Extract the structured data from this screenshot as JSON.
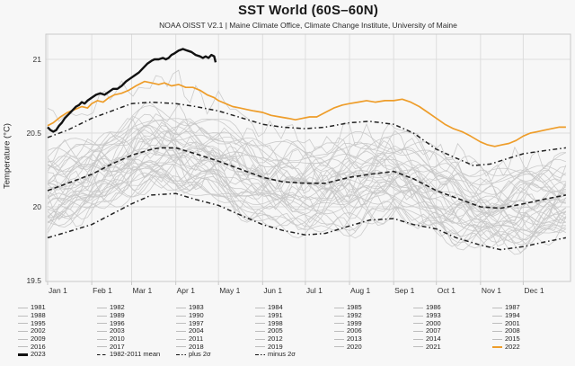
{
  "header": {
    "title": "SST World (60S–60N)",
    "subtitle": "NOAA OISST V2.1 | Maine Climate Office, Climate Change Institute, University of Maine"
  },
  "axes": {
    "y_label": "Temperature (°C)",
    "y_ticks": [
      {
        "value": 21,
        "label": "21"
      },
      {
        "value": 20.5,
        "label": "20.5"
      },
      {
        "value": 20,
        "label": "20"
      },
      {
        "value": 19.5,
        "label": "19.5"
      }
    ],
    "x_ticks": [
      {
        "day": 1,
        "label": "Jan 1"
      },
      {
        "day": 32,
        "label": "Feb 1"
      },
      {
        "day": 60,
        "label": "Mar 1"
      },
      {
        "day": 91,
        "label": "Apr 1"
      },
      {
        "day": 121,
        "label": "May 1"
      },
      {
        "day": 152,
        "label": "Jun 1"
      },
      {
        "day": 182,
        "label": "Jul 1"
      },
      {
        "day": 213,
        "label": "Aug 1"
      },
      {
        "day": 244,
        "label": "Sep 1"
      },
      {
        "day": 274,
        "label": "Oct 1"
      },
      {
        "day": 305,
        "label": "Nov 1"
      },
      {
        "day": 335,
        "label": "Dec 1"
      }
    ]
  },
  "colors": {
    "background": "#f7f7f7",
    "plot_border": "#c9c9c9",
    "gridline": "#dedede",
    "gray_year": "#c7c7c7",
    "orange_2022": "#EE9D2A",
    "black_2023": "#111111",
    "dashed_stat": "#222222"
  },
  "legend": {
    "columns": [
      {
        "items": [
          {
            "label": "1981",
            "style": "gray"
          },
          {
            "label": "1988",
            "style": "gray"
          },
          {
            "label": "1995",
            "style": "gray"
          },
          {
            "label": "2002",
            "style": "gray"
          },
          {
            "label": "2009",
            "style": "gray"
          },
          {
            "label": "2016",
            "style": "gray"
          },
          {
            "label": "2023",
            "style": "bold-black"
          }
        ]
      },
      {
        "items": [
          {
            "label": "1982",
            "style": "gray"
          },
          {
            "label": "1989",
            "style": "gray"
          },
          {
            "label": "1996",
            "style": "gray"
          },
          {
            "label": "2003",
            "style": "gray"
          },
          {
            "label": "2010",
            "style": "gray"
          },
          {
            "label": "2017",
            "style": "gray"
          },
          {
            "label": "1982-2011 mean",
            "style": "dashed"
          }
        ]
      },
      {
        "items": [
          {
            "label": "1983",
            "style": "gray"
          },
          {
            "label": "1990",
            "style": "gray"
          },
          {
            "label": "1997",
            "style": "gray"
          },
          {
            "label": "2004",
            "style": "gray"
          },
          {
            "label": "2011",
            "style": "gray"
          },
          {
            "label": "2018",
            "style": "gray"
          },
          {
            "label": "plus 2σ",
            "style": "dashdot"
          }
        ]
      },
      {
        "items": [
          {
            "label": "1984",
            "style": "gray"
          },
          {
            "label": "1991",
            "style": "gray"
          },
          {
            "label": "1998",
            "style": "gray"
          },
          {
            "label": "2005",
            "style": "gray"
          },
          {
            "label": "2012",
            "style": "gray"
          },
          {
            "label": "2019",
            "style": "gray"
          },
          {
            "label": "minus 2σ",
            "style": "dashdot"
          }
        ]
      },
      {
        "items": [
          {
            "label": "1985",
            "style": "gray"
          },
          {
            "label": "1992",
            "style": "gray"
          },
          {
            "label": "1999",
            "style": "gray"
          },
          {
            "label": "2006",
            "style": "gray"
          },
          {
            "label": "2013",
            "style": "gray"
          },
          {
            "label": "2020",
            "style": "gray"
          }
        ]
      },
      {
        "items": [
          {
            "label": "1986",
            "style": "gray"
          },
          {
            "label": "1993",
            "style": "gray"
          },
          {
            "label": "2000",
            "style": "gray"
          },
          {
            "label": "2007",
            "style": "gray"
          },
          {
            "label": "2014",
            "style": "gray"
          },
          {
            "label": "2021",
            "style": "gray"
          }
        ]
      },
      {
        "items": [
          {
            "label": "1987",
            "style": "gray"
          },
          {
            "label": "1994",
            "style": "gray"
          },
          {
            "label": "2001",
            "style": "gray"
          },
          {
            "label": "2008",
            "style": "gray"
          },
          {
            "label": "2015",
            "style": "gray"
          },
          {
            "label": "2022",
            "style": "orange"
          }
        ]
      }
    ]
  },
  "chart_data": {
    "type": "line",
    "title": "SST World (60S–60N)",
    "xlabel": "",
    "ylabel": "Temperature (°C)",
    "x_unit": "day_of_year",
    "xlim": [
      1,
      365
    ],
    "ylim": [
      19.49,
      21.17
    ],
    "grid": true,
    "legend_position": "bottom",
    "background_years": [
      1981,
      1982,
      1983,
      1984,
      1985,
      1986,
      1987,
      1988,
      1989,
      1990,
      1991,
      1992,
      1993,
      1994,
      1995,
      1996,
      1997,
      1998,
      1999,
      2000,
      2001,
      2002,
      2003,
      2004,
      2005,
      2006,
      2007,
      2008,
      2009,
      2010,
      2011,
      2012,
      2013,
      2014,
      2015,
      2016,
      2017,
      2018,
      2019,
      2020,
      2021
    ],
    "series": [
      {
        "name": "2023",
        "style": "bold-black",
        "points": [
          [
            1,
            20.54
          ],
          [
            3,
            20.52
          ],
          [
            5,
            20.51
          ],
          [
            7,
            20.52
          ],
          [
            9,
            20.55
          ],
          [
            11,
            20.57
          ],
          [
            13,
            20.6
          ],
          [
            15,
            20.62
          ],
          [
            17,
            20.64
          ],
          [
            19,
            20.66
          ],
          [
            21,
            20.68
          ],
          [
            23,
            20.69
          ],
          [
            25,
            20.71
          ],
          [
            27,
            20.7
          ],
          [
            29,
            20.72
          ],
          [
            32,
            20.74
          ],
          [
            35,
            20.76
          ],
          [
            38,
            20.77
          ],
          [
            41,
            20.76
          ],
          [
            44,
            20.78
          ],
          [
            47,
            20.8
          ],
          [
            50,
            20.8
          ],
          [
            53,
            20.82
          ],
          [
            56,
            20.85
          ],
          [
            59,
            20.87
          ],
          [
            62,
            20.89
          ],
          [
            65,
            20.91
          ],
          [
            68,
            20.94
          ],
          [
            71,
            20.97
          ],
          [
            74,
            20.99
          ],
          [
            76,
            21.0
          ],
          [
            79,
            21.0
          ],
          [
            82,
            21.01
          ],
          [
            84,
            21.0
          ],
          [
            86,
            21.01
          ],
          [
            88,
            21.03
          ],
          [
            90,
            21.04
          ],
          [
            93,
            21.06
          ],
          [
            96,
            21.07
          ],
          [
            99,
            21.06
          ],
          [
            102,
            21.05
          ],
          [
            105,
            21.03
          ],
          [
            108,
            21.02
          ],
          [
            110,
            21.01
          ],
          [
            112,
            21.02
          ],
          [
            114,
            21.01
          ],
          [
            116,
            21.03
          ],
          [
            118,
            21.02
          ],
          [
            119,
            20.98
          ]
        ]
      },
      {
        "name": "2022",
        "style": "orange",
        "points": [
          [
            1,
            20.55
          ],
          [
            5,
            20.57
          ],
          [
            10,
            20.61
          ],
          [
            15,
            20.64
          ],
          [
            20,
            20.66
          ],
          [
            25,
            20.68
          ],
          [
            29,
            20.67
          ],
          [
            32,
            20.7
          ],
          [
            36,
            20.72
          ],
          [
            40,
            20.71
          ],
          [
            44,
            20.74
          ],
          [
            48,
            20.76
          ],
          [
            53,
            20.77
          ],
          [
            58,
            20.79
          ],
          [
            63,
            20.82
          ],
          [
            69,
            20.85
          ],
          [
            74,
            20.84
          ],
          [
            79,
            20.83
          ],
          [
            83,
            20.84
          ],
          [
            88,
            20.82
          ],
          [
            93,
            20.83
          ],
          [
            98,
            20.81
          ],
          [
            103,
            20.81
          ],
          [
            108,
            20.79
          ],
          [
            113,
            20.76
          ],
          [
            118,
            20.74
          ],
          [
            121,
            20.72
          ],
          [
            126,
            20.7
          ],
          [
            131,
            20.68
          ],
          [
            136,
            20.67
          ],
          [
            141,
            20.66
          ],
          [
            146,
            20.65
          ],
          [
            152,
            20.64
          ],
          [
            158,
            20.62
          ],
          [
            164,
            20.61
          ],
          [
            170,
            20.6
          ],
          [
            175,
            20.59
          ],
          [
            180,
            20.6
          ],
          [
            185,
            20.61
          ],
          [
            190,
            20.61
          ],
          [
            196,
            20.64
          ],
          [
            202,
            20.67
          ],
          [
            208,
            20.69
          ],
          [
            213,
            20.7
          ],
          [
            219,
            20.71
          ],
          [
            225,
            20.72
          ],
          [
            231,
            20.71
          ],
          [
            238,
            20.72
          ],
          [
            244,
            20.72
          ],
          [
            250,
            20.73
          ],
          [
            256,
            20.71
          ],
          [
            262,
            20.68
          ],
          [
            268,
            20.64
          ],
          [
            274,
            20.6
          ],
          [
            280,
            20.56
          ],
          [
            286,
            20.53
          ],
          [
            292,
            20.51
          ],
          [
            298,
            20.48
          ],
          [
            305,
            20.44
          ],
          [
            310,
            20.42
          ],
          [
            315,
            20.41
          ],
          [
            320,
            20.42
          ],
          [
            325,
            20.43
          ],
          [
            330,
            20.45
          ],
          [
            335,
            20.48
          ],
          [
            340,
            20.5
          ],
          [
            345,
            20.51
          ],
          [
            350,
            20.52
          ],
          [
            355,
            20.53
          ],
          [
            360,
            20.54
          ],
          [
            365,
            20.54
          ]
        ]
      },
      {
        "name": "1982-2011 mean",
        "style": "dashed",
        "points": [
          [
            1,
            20.11
          ],
          [
            15,
            20.16
          ],
          [
            32,
            20.22
          ],
          [
            46,
            20.29
          ],
          [
            60,
            20.35
          ],
          [
            74,
            20.39
          ],
          [
            80,
            20.4
          ],
          [
            91,
            20.4
          ],
          [
            105,
            20.36
          ],
          [
            121,
            20.31
          ],
          [
            135,
            20.26
          ],
          [
            152,
            20.2
          ],
          [
            166,
            20.17
          ],
          [
            182,
            20.16
          ],
          [
            196,
            20.16
          ],
          [
            213,
            20.2
          ],
          [
            227,
            20.22
          ],
          [
            244,
            20.24
          ],
          [
            258,
            20.19
          ],
          [
            274,
            20.11
          ],
          [
            288,
            20.06
          ],
          [
            305,
            20.0
          ],
          [
            319,
            19.99
          ],
          [
            335,
            20.02
          ],
          [
            349,
            20.05
          ],
          [
            365,
            20.08
          ]
        ]
      },
      {
        "name": "plus 2σ",
        "style": "dashdot",
        "points": [
          [
            1,
            20.47
          ],
          [
            15,
            20.52
          ],
          [
            32,
            20.6
          ],
          [
            46,
            20.65
          ],
          [
            60,
            20.7
          ],
          [
            74,
            20.71
          ],
          [
            91,
            20.7
          ],
          [
            105,
            20.68
          ],
          [
            121,
            20.65
          ],
          [
            135,
            20.61
          ],
          [
            152,
            20.56
          ],
          [
            166,
            20.54
          ],
          [
            182,
            20.53
          ],
          [
            196,
            20.54
          ],
          [
            213,
            20.57
          ],
          [
            227,
            20.58
          ],
          [
            244,
            20.56
          ],
          [
            258,
            20.5
          ],
          [
            274,
            20.39
          ],
          [
            288,
            20.33
          ],
          [
            300,
            20.28
          ],
          [
            312,
            20.29
          ],
          [
            325,
            20.33
          ],
          [
            335,
            20.36
          ],
          [
            349,
            20.38
          ],
          [
            365,
            20.4
          ]
        ]
      },
      {
        "name": "minus 2σ",
        "style": "dashdot",
        "points": [
          [
            1,
            19.79
          ],
          [
            15,
            19.83
          ],
          [
            32,
            19.88
          ],
          [
            46,
            19.95
          ],
          [
            60,
            20.02
          ],
          [
            74,
            20.08
          ],
          [
            91,
            20.09
          ],
          [
            105,
            20.05
          ],
          [
            121,
            20.01
          ],
          [
            135,
            19.95
          ],
          [
            152,
            19.88
          ],
          [
            166,
            19.84
          ],
          [
            182,
            19.81
          ],
          [
            196,
            19.82
          ],
          [
            213,
            19.87
          ],
          [
            227,
            19.91
          ],
          [
            244,
            19.92
          ],
          [
            258,
            19.88
          ],
          [
            274,
            19.85
          ],
          [
            288,
            19.79
          ],
          [
            305,
            19.74
          ],
          [
            319,
            19.71
          ],
          [
            335,
            19.73
          ],
          [
            349,
            19.76
          ],
          [
            365,
            19.79
          ]
        ]
      }
    ]
  }
}
